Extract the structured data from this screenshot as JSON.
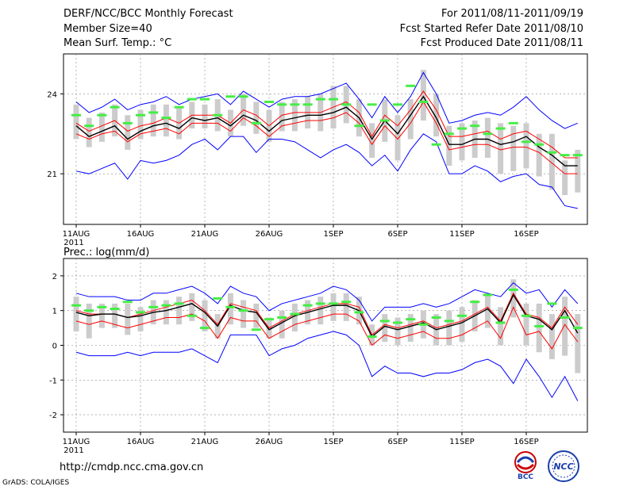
{
  "header": {
    "title": "DERF/NCC/BCC Monthly Forecast",
    "member_size": "Member Size=40",
    "var1": "Mean Surf. Temp.: °C",
    "for_range": "For 2011/08/11-2011/09/19",
    "started": "Fcst Started Refer Date 2011/08/10",
    "produced": "Fcst Produced Date 2011/08/11"
  },
  "footer": {
    "url": "http://cmdp.ncc.cma.gov.cn",
    "credit": "GrADS: COLA/IGES",
    "logo_left": "BCC",
    "logo_right": "NCC"
  },
  "colors": {
    "envelope": "#0000ff",
    "spread": "#ff0000",
    "mean": "#000000",
    "obs": "#44ee44",
    "bar": "#cccccc",
    "grid": "#888888"
  },
  "chart_data": [
    {
      "type": "line",
      "title": "Mean Surf. Temp.: °C",
      "x_start_label": "11AUG",
      "year_label": "2011",
      "xtick_labels": [
        "11AUG",
        "16AUG",
        "21AUG",
        "26AUG",
        "1SEP",
        "6SEP",
        "11SEP",
        "16SEP"
      ],
      "yticks": [
        21,
        24
      ],
      "ylim": [
        19.1,
        25.5
      ],
      "days": 40,
      "series": [
        {
          "name": "max",
          "values": [
            23.7,
            23.3,
            23.5,
            23.8,
            23.4,
            23.6,
            23.7,
            23.9,
            23.6,
            23.8,
            23.9,
            24.0,
            23.6,
            24.1,
            23.8,
            23.5,
            23.8,
            23.9,
            23.9,
            24.0,
            24.2,
            24.4,
            23.8,
            23.1,
            23.9,
            23.3,
            23.9,
            24.8,
            24.0,
            22.9,
            23.0,
            23.2,
            23.3,
            23.2,
            23.5,
            23.9,
            23.4,
            23.0,
            22.7,
            22.9
          ]
        },
        {
          "name": "upper",
          "values": [
            22.9,
            22.6,
            22.8,
            23.0,
            22.6,
            22.8,
            22.9,
            23.1,
            22.9,
            23.2,
            23.2,
            23.2,
            22.9,
            23.4,
            23.2,
            22.8,
            23.2,
            23.3,
            23.3,
            23.3,
            23.5,
            23.7,
            23.3,
            22.4,
            23.2,
            22.8,
            23.4,
            24.1,
            23.4,
            22.4,
            22.4,
            22.5,
            22.6,
            22.3,
            22.5,
            22.6,
            22.3,
            22.0,
            21.6,
            21.6
          ]
        },
        {
          "name": "mean",
          "values": [
            22.8,
            22.4,
            22.6,
            22.8,
            22.3,
            22.6,
            22.8,
            22.9,
            22.7,
            23.1,
            23.0,
            23.1,
            22.8,
            23.2,
            23.0,
            22.6,
            23.0,
            23.1,
            23.2,
            23.2,
            23.3,
            23.5,
            23.1,
            22.3,
            23.0,
            22.5,
            23.2,
            23.9,
            23.1,
            22.1,
            22.1,
            22.3,
            22.3,
            22.1,
            22.2,
            22.4,
            22.0,
            21.7,
            21.3,
            21.3
          ]
        },
        {
          "name": "lower",
          "values": [
            22.5,
            22.3,
            22.5,
            22.6,
            22.2,
            22.5,
            22.6,
            22.7,
            22.5,
            22.9,
            22.9,
            22.9,
            22.6,
            23.1,
            22.8,
            22.4,
            22.8,
            22.9,
            23.0,
            23.0,
            23.1,
            23.3,
            22.9,
            22.1,
            22.8,
            22.3,
            22.9,
            23.7,
            22.9,
            21.9,
            22.0,
            22.1,
            22.1,
            21.9,
            22.0,
            22.0,
            21.8,
            21.4,
            21.0,
            21.0
          ]
        },
        {
          "name": "min",
          "values": [
            21.1,
            21.0,
            21.2,
            21.4,
            20.8,
            21.5,
            21.4,
            21.5,
            21.7,
            22.1,
            22.3,
            21.9,
            22.4,
            22.4,
            21.8,
            22.3,
            22.3,
            22.2,
            21.9,
            21.6,
            21.9,
            22.1,
            21.8,
            21.3,
            21.7,
            21.1,
            21.9,
            22.5,
            22.2,
            21.0,
            21.0,
            21.3,
            21.1,
            20.7,
            20.9,
            21.0,
            20.6,
            20.5,
            19.8,
            19.7
          ]
        }
      ],
      "obs": [
        23.2,
        22.8,
        23.2,
        23.5,
        22.9,
        23.2,
        23.3,
        23.1,
        23.5,
        23.8,
        23.8,
        23.2,
        23.9,
        23.9,
        22.9,
        23.7,
        23.6,
        23.6,
        23.6,
        23.8,
        23.8,
        23.6,
        22.8,
        23.6,
        23.0,
        23.6,
        24.3,
        23.7,
        22.1,
        22.5,
        22.7,
        22.8,
        22.5,
        22.7,
        22.9,
        22.2,
        22.1,
        21.8,
        21.7,
        21.7
      ],
      "bar_lo": [
        22.3,
        22.0,
        22.2,
        22.4,
        21.9,
        22.3,
        22.4,
        22.4,
        22.3,
        22.7,
        22.7,
        22.6,
        22.4,
        22.8,
        22.5,
        22.2,
        22.6,
        22.6,
        22.7,
        22.6,
        22.7,
        22.9,
        22.4,
        21.6,
        22.2,
        21.5,
        22.3,
        23.0,
        22.4,
        21.3,
        21.5,
        21.6,
        21.6,
        21.0,
        21.1,
        21.2,
        20.9,
        20.4,
        20.2,
        20.3
      ],
      "bar_hi": [
        23.6,
        23.1,
        23.3,
        23.6,
        23.2,
        23.4,
        23.6,
        23.6,
        23.5,
        23.7,
        23.6,
        23.8,
        23.4,
        24.0,
        23.7,
        23.4,
        23.7,
        23.8,
        23.9,
        24.0,
        24.3,
        24.3,
        23.8,
        22.9,
        23.8,
        23.2,
        23.8,
        24.9,
        24.0,
        22.8,
        22.9,
        23.0,
        23.1,
        22.9,
        22.8,
        22.9,
        22.5,
        22.5,
        21.5,
        21.9
      ]
    },
    {
      "type": "line",
      "title": "Prec.: log(mm/d)",
      "x_start_label": "11AUG",
      "year_label": "2011",
      "xtick_labels": [
        "11AUG",
        "16AUG",
        "21AUG",
        "26AUG",
        "1SEP",
        "6SEP",
        "11SEP",
        "16SEP"
      ],
      "yticks": [
        -2,
        -1,
        0,
        1,
        2
      ],
      "ylim": [
        -2.5,
        2.5
      ],
      "days": 40,
      "series": [
        {
          "name": "max",
          "values": [
            1.5,
            1.4,
            1.4,
            1.4,
            1.3,
            1.3,
            1.5,
            1.5,
            1.6,
            1.7,
            1.5,
            1.2,
            1.7,
            1.5,
            1.4,
            1.0,
            1.2,
            1.3,
            1.4,
            1.5,
            1.7,
            1.6,
            1.3,
            0.7,
            1.1,
            1.1,
            1.1,
            1.2,
            1.1,
            1.2,
            1.4,
            1.6,
            1.5,
            1.4,
            1.8,
            1.5,
            1.6,
            1.1,
            1.6,
            1.2
          ]
        },
        {
          "name": "upper",
          "values": [
            1.0,
            0.9,
            0.9,
            0.9,
            0.8,
            0.9,
            1.0,
            1.1,
            1.2,
            1.3,
            1.0,
            0.6,
            1.2,
            1.1,
            1.0,
            0.5,
            0.7,
            0.9,
            1.0,
            1.1,
            1.2,
            1.2,
            1.1,
            0.3,
            0.6,
            0.5,
            0.6,
            0.7,
            0.5,
            0.6,
            0.7,
            0.9,
            1.1,
            0.7,
            1.5,
            0.9,
            0.8,
            0.5,
            1.1,
            0.6
          ]
        },
        {
          "name": "mean",
          "values": [
            0.95,
            0.85,
            0.9,
            0.9,
            0.8,
            0.85,
            0.95,
            1.0,
            1.1,
            1.2,
            0.95,
            0.55,
            1.15,
            1.0,
            0.95,
            0.45,
            0.65,
            0.85,
            0.95,
            1.05,
            1.15,
            1.15,
            1.0,
            0.25,
            0.55,
            0.45,
            0.55,
            0.65,
            0.45,
            0.55,
            0.65,
            0.85,
            1.05,
            0.65,
            1.45,
            0.85,
            0.75,
            0.45,
            1.0,
            0.35
          ]
        },
        {
          "name": "lower",
          "values": [
            0.7,
            0.6,
            0.7,
            0.6,
            0.5,
            0.6,
            0.7,
            0.8,
            0.8,
            0.9,
            0.7,
            0.2,
            0.8,
            0.7,
            0.7,
            0.2,
            0.4,
            0.6,
            0.7,
            0.8,
            0.9,
            0.9,
            0.7,
            0.0,
            0.3,
            0.2,
            0.3,
            0.4,
            0.2,
            0.2,
            0.3,
            0.5,
            0.7,
            0.2,
            1.1,
            0.3,
            0.4,
            -0.1,
            0.6,
            0.1
          ]
        },
        {
          "name": "min",
          "values": [
            -0.2,
            -0.3,
            -0.3,
            -0.3,
            -0.2,
            -0.3,
            -0.2,
            -0.2,
            -0.2,
            -0.1,
            -0.3,
            -0.5,
            0.3,
            0.3,
            0.3,
            -0.3,
            -0.1,
            0.0,
            0.2,
            0.3,
            0.4,
            0.3,
            0.0,
            -0.9,
            -0.6,
            -0.8,
            -0.8,
            -0.9,
            -0.8,
            -0.8,
            -0.7,
            -0.5,
            -0.4,
            -0.6,
            -1.1,
            -0.4,
            -0.9,
            -1.5,
            -0.9,
            -1.6
          ]
        }
      ],
      "obs": [
        1.15,
        1.0,
        1.1,
        1.05,
        1.25,
        0.95,
        1.1,
        1.15,
        1.2,
        0.85,
        0.5,
        1.35,
        1.1,
        1.0,
        0.45,
        0.75,
        0.8,
        0.9,
        1.15,
        1.2,
        1.2,
        1.25,
        0.95,
        0.25,
        0.7,
        0.65,
        0.75,
        0.6,
        0.8,
        0.7,
        0.85,
        1.25,
        1.45,
        0.65,
        1.6,
        0.85,
        0.55,
        1.2,
        0.8,
        0.5
      ],
      "bar_lo": [
        0.4,
        0.2,
        0.5,
        0.5,
        0.3,
        0.4,
        0.6,
        0.6,
        0.6,
        0.7,
        0.4,
        0.2,
        0.6,
        0.5,
        0.5,
        0.2,
        0.2,
        0.4,
        0.6,
        0.6,
        0.7,
        0.7,
        0.6,
        0.0,
        0.1,
        0.0,
        0.1,
        0.2,
        0.0,
        0.0,
        0.1,
        0.4,
        0.5,
        0.0,
        0.8,
        0.0,
        -0.2,
        -0.4,
        -0.3,
        -0.8
      ],
      "bar_hi": [
        1.4,
        1.2,
        1.2,
        1.2,
        1.2,
        1.1,
        1.3,
        1.3,
        1.4,
        1.5,
        1.3,
        0.9,
        1.5,
        1.3,
        1.2,
        0.8,
        1.0,
        1.2,
        1.3,
        1.4,
        1.5,
        1.5,
        1.4,
        0.6,
        0.9,
        0.8,
        0.9,
        1.0,
        0.9,
        1.0,
        1.1,
        1.3,
        1.5,
        1.1,
        1.9,
        1.2,
        1.2,
        0.9,
        1.4,
        0.9
      ]
    }
  ]
}
